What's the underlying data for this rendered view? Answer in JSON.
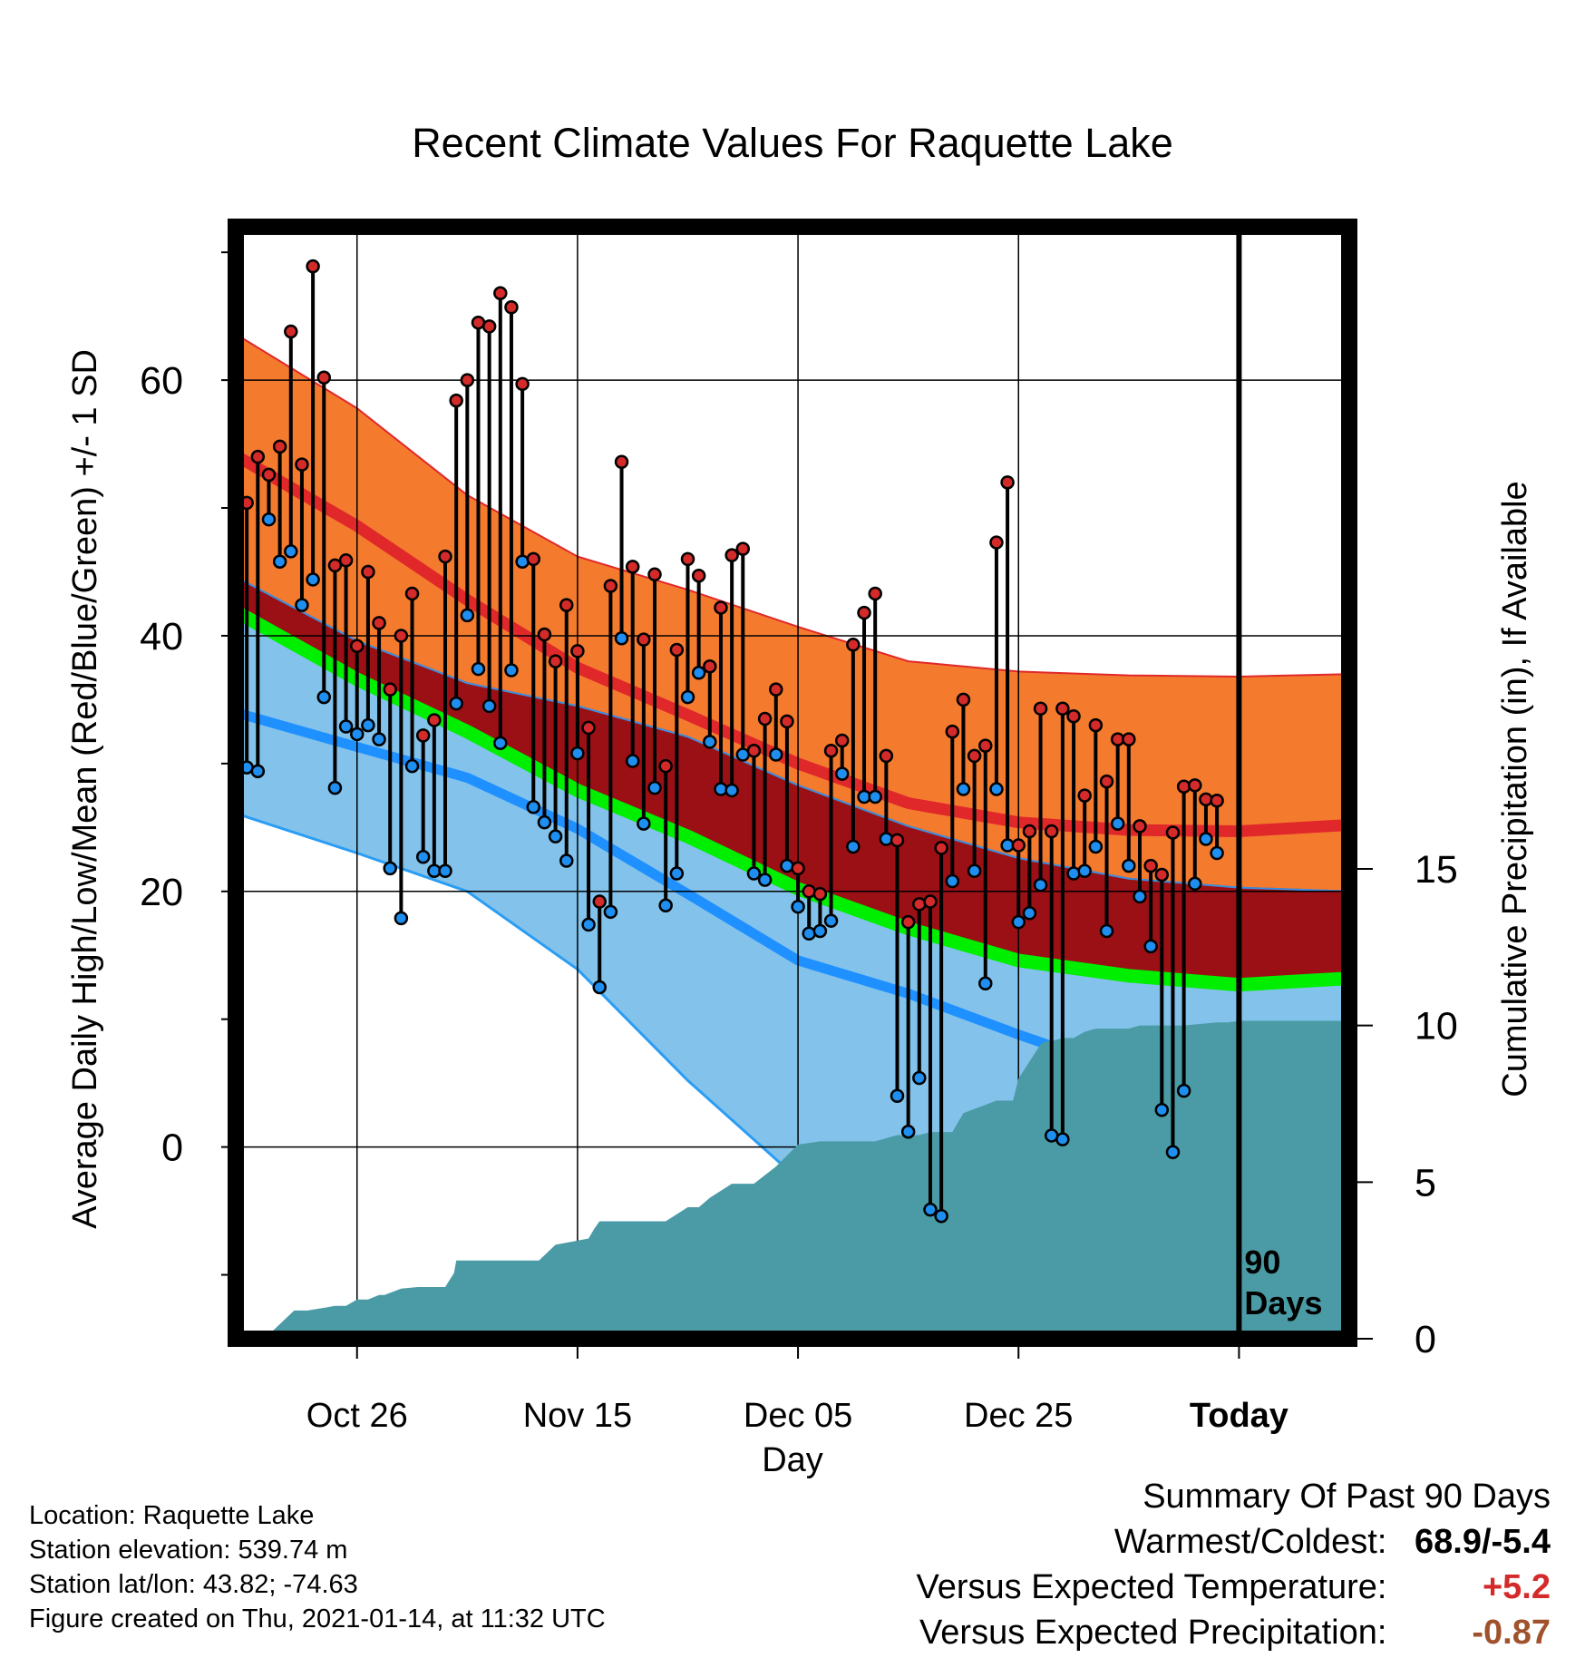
{
  "chart_data": {
    "type": "line",
    "title": "Recent Climate Values For Raquette Lake",
    "xlabel": "Day",
    "ylabel": "Average Daily High/Low/Mean (Red/Blue/Green) +/- 1 SD",
    "y2label": "Cumulative Precipitation (in), If Available",
    "x_ticks": [
      {
        "day": 10,
        "label": "Oct 26"
      },
      {
        "day": 30,
        "label": "Nov 15"
      },
      {
        "day": 50,
        "label": "Dec 05"
      },
      {
        "day": 70,
        "label": "Dec 25"
      },
      {
        "day": 90,
        "label": "Today"
      }
    ],
    "xlim": [
      -1,
      100
    ],
    "ylim": [
      -15,
      72
    ],
    "y_ticks": [
      0,
      20,
      40,
      60
    ],
    "y_minor_ticks": [
      -10,
      10,
      30,
      50,
      70
    ],
    "y2lim": [
      0,
      35.5
    ],
    "y2_ticks": [
      0,
      5,
      10,
      15
    ],
    "today_day": 90,
    "today_marker_label": [
      "90",
      "Days"
    ],
    "normals": {
      "days": [
        -1,
        10,
        20,
        30,
        40,
        50,
        60,
        70,
        80,
        90,
        100
      ],
      "high_plus_sd": [
        63.6,
        57.8,
        51.0,
        46.2,
        43.6,
        40.7,
        38.0,
        37.2,
        36.9,
        36.8,
        37.0
      ],
      "high": [
        54.1,
        48.6,
        42.8,
        37.5,
        33.8,
        30.0,
        26.9,
        25.4,
        24.8,
        24.7,
        25.2
      ],
      "high_minus_sd": [
        44.6,
        39.6,
        36.3,
        34.5,
        32.1,
        28.3,
        25.1,
        22.6,
        21.0,
        20.3,
        20.0
      ],
      "mean": [
        41.9,
        36.6,
        32.5,
        27.9,
        24.3,
        20.2,
        17.1,
        14.6,
        13.4,
        12.7,
        13.2
      ],
      "low": [
        34.0,
        31.3,
        28.9,
        24.9,
        19.8,
        14.6,
        12.0,
        8.8,
        5.8,
        4.8,
        4.8
      ],
      "low_minus_sd": [
        26.1,
        23.0,
        20.0,
        13.9,
        5.2,
        -2.5,
        -9.0,
        -12.0,
        -13.0,
        -13.0,
        -13.0
      ]
    },
    "observed": {
      "start_day": -1,
      "high": [
        47.2,
        50.4,
        54.0,
        52.6,
        54.8,
        63.8,
        53.4,
        68.9,
        60.2,
        45.5,
        45.9,
        39.2,
        45.0,
        41.0,
        35.8,
        40.0,
        43.3,
        32.2,
        33.4,
        46.2,
        58.4,
        60.0,
        64.5,
        64.2,
        66.8,
        65.7,
        59.7,
        46.0,
        40.1,
        38.0,
        42.4,
        38.8,
        32.8,
        19.2,
        43.9,
        53.6,
        45.4,
        39.7,
        44.8,
        29.8,
        38.9,
        46.0,
        44.7,
        37.6,
        42.2,
        46.3,
        46.8,
        31.0,
        33.5,
        35.8,
        33.3,
        21.8,
        20.0,
        19.8,
        31.0,
        31.8,
        39.3,
        41.8,
        43.3,
        30.6,
        24.0,
        17.6,
        19.0,
        19.2,
        23.4,
        32.5,
        35.0,
        30.6,
        31.4,
        47.3,
        52.0,
        23.6,
        24.7,
        34.3,
        24.7,
        34.3,
        33.7,
        27.5,
        33.0,
        28.6,
        31.9,
        31.9,
        25.1,
        22.0,
        21.3,
        24.6,
        28.2,
        28.3,
        27.2,
        27.1
      ],
      "low": [
        35.8,
        29.7,
        29.4,
        49.1,
        45.8,
        46.6,
        42.4,
        44.4,
        35.2,
        28.1,
        32.9,
        32.3,
        33.0,
        31.9,
        21.8,
        17.9,
        29.8,
        22.7,
        21.6,
        21.6,
        34.7,
        41.6,
        37.4,
        34.5,
        31.6,
        37.3,
        45.8,
        26.6,
        25.4,
        24.3,
        22.4,
        30.8,
        17.4,
        12.5,
        18.4,
        39.8,
        30.2,
        25.3,
        28.1,
        18.9,
        21.4,
        35.2,
        37.1,
        31.7,
        28.0,
        27.9,
        30.7,
        21.4,
        20.9,
        30.7,
        22.0,
        18.8,
        16.7,
        16.9,
        17.7,
        29.2,
        23.5,
        27.4,
        27.4,
        24.1,
        4.0,
        1.2,
        5.4,
        -4.9,
        -5.4,
        20.8,
        28.0,
        21.6,
        12.8,
        28.0,
        23.6,
        17.6,
        18.3,
        20.5,
        0.9,
        0.6,
        21.4,
        21.6,
        23.5,
        16.9,
        25.3,
        22.0,
        19.6,
        15.7,
        2.9,
        -0.4,
        4.4,
        20.6,
        24.1,
        23.0
      ]
    },
    "precip": {
      "days": [
        1.5,
        2.5,
        4.3,
        5.5,
        7.2,
        8.0,
        9.0,
        10.0,
        11.0,
        12.0,
        12.5,
        14.0,
        15.5,
        16.0,
        18.0,
        18.8,
        19.0,
        21.0,
        26.5,
        28.0,
        31.0,
        31.5,
        32.0,
        33.0,
        36.0,
        38.0,
        40.0,
        41.0,
        42.0,
        44.0,
        45.0,
        46.0,
        48.0,
        50.0,
        52.0,
        53.0,
        57.0,
        59.0,
        61.0,
        62.0,
        64.0,
        65.0,
        68.0,
        69.5,
        70.0,
        72.0,
        72.5,
        73.0,
        74.0,
        75.0,
        75.5,
        76.0,
        77.0,
        80.0,
        81.0,
        83.0,
        85.0,
        88.0,
        89.0,
        90.0,
        100.0
      ],
      "values": [
        0.0,
        0.3,
        0.9,
        0.9,
        1.0,
        1.05,
        1.05,
        1.25,
        1.25,
        1.4,
        1.4,
        1.6,
        1.65,
        1.65,
        1.65,
        2.1,
        2.5,
        2.5,
        2.5,
        3.0,
        3.2,
        3.5,
        3.75,
        3.75,
        3.75,
        3.75,
        4.2,
        4.2,
        4.5,
        4.95,
        4.95,
        4.95,
        5.5,
        6.2,
        6.3,
        6.3,
        6.3,
        6.5,
        6.5,
        6.6,
        6.6,
        7.2,
        7.6,
        7.6,
        8.3,
        9.4,
        9.5,
        9.5,
        9.6,
        9.6,
        9.7,
        9.8,
        9.9,
        9.9,
        10.0,
        10.0,
        10.0,
        10.1,
        10.1,
        10.15,
        10.15
      ]
    },
    "colors": {
      "high_band": "#f47b2e",
      "high_line": "#e0282a",
      "above_mean_band": "#9a1015",
      "mean_line": "#00ee00",
      "low_band": "#83c2ea",
      "low_line": "#1e90ff",
      "low_sd_line": "#2a9df4",
      "precip_fill": "#4a9ba5",
      "high_dot": "#d42a2a",
      "low_dot": "#1e8ff0"
    }
  },
  "info": {
    "location": "Location: Raquette Lake",
    "elevation": "Station elevation: 539.74 m",
    "latlon": "Station lat/lon: 43.82; -74.63",
    "created": "Figure created on Thu, 2021-01-14, at 11:32 UTC"
  },
  "summary": {
    "title": "Summary Of Past 90 Days",
    "warmest_coldest_label": "Warmest/Coldest:",
    "warmest_coldest_value": "68.9/-5.4",
    "temp_label": "Versus Expected Temperature:",
    "temp_value": "+5.2",
    "temp_color": "#d42a2a",
    "precip_label": "Versus Expected Precipitation:",
    "precip_value": "-0.87",
    "precip_color": "#a0522d"
  }
}
